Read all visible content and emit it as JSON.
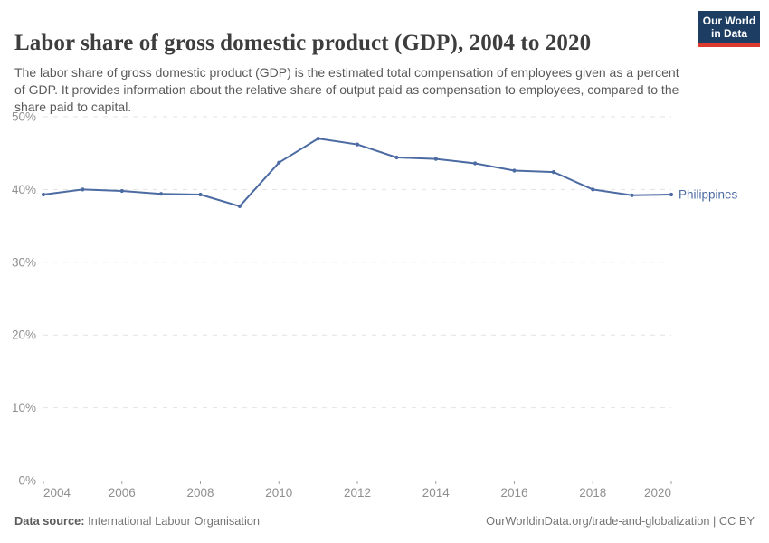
{
  "header": {
    "title": "Labor share of gross domestic product (GDP), 2004 to 2020",
    "subtitle": "The labor share of gross domestic product (GDP) is the estimated total compensation of employees given as a percent of GDP. It provides information about the relative share of output paid as compensation to employees, compared to the share paid to capital.",
    "logo": {
      "line1": "Our World",
      "line2": "in Data",
      "bg_color": "#1d3d63",
      "accent_color": "#dc3a2e",
      "text_color": "#ffffff"
    }
  },
  "chart_data": {
    "type": "line",
    "title": "Labor share of gross domestic product (GDP), 2004 to 2020",
    "xlabel": "",
    "ylabel": "",
    "xlim": [
      2004,
      2020
    ],
    "ylim": [
      0,
      50
    ],
    "x": [
      2004,
      2005,
      2006,
      2007,
      2008,
      2009,
      2010,
      2011,
      2012,
      2013,
      2014,
      2015,
      2016,
      2017,
      2018,
      2019,
      2020
    ],
    "series": [
      {
        "name": "Philippines",
        "color": "#4d6ba3",
        "values": [
          39.3,
          40.0,
          39.8,
          39.4,
          39.3,
          37.7,
          43.7,
          47.0,
          46.2,
          44.4,
          44.2,
          43.6,
          42.6,
          42.4,
          40.0,
          39.2,
          39.3
        ]
      }
    ],
    "x_tick_values": [
      2004,
      2006,
      2008,
      2010,
      2012,
      2014,
      2016,
      2018,
      2020
    ],
    "x_tick_labels": [
      "2004",
      "2006",
      "2008",
      "2010",
      "2012",
      "2014",
      "2016",
      "2018",
      "2020"
    ],
    "y_tick_values": [
      0,
      10,
      20,
      30,
      40,
      50
    ],
    "y_tick_labels": [
      "0%",
      "10%",
      "20%",
      "30%",
      "40%",
      "50%"
    ],
    "grid": "horizontal-dashed",
    "legend_position": "end-of-line",
    "grid_color": "#e2e2e2",
    "axis_color": "#a3a3a3",
    "tick_label_color": "#8f8f8f"
  },
  "footer": {
    "datasource_label": "Data source:",
    "datasource_value": "International Labour Organisation",
    "url_text": "OurWorldinData.org/trade-and-globalization",
    "separator": " | ",
    "license_text": "CC BY"
  }
}
